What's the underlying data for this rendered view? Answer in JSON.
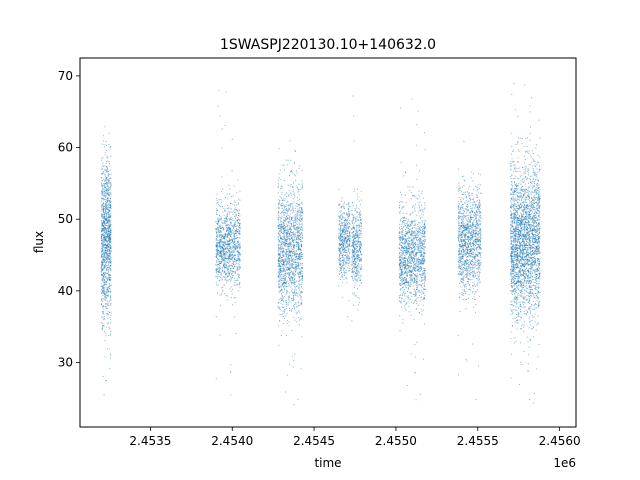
{
  "chart_data": {
    "type": "scatter",
    "title": "1SWASPJ220130.10+140632.0",
    "xlabel": "time",
    "ylabel": "flux",
    "x_offset_label": "1e6",
    "xlim": [
      2453070,
      2456100
    ],
    "ylim": [
      21,
      72.5
    ],
    "grid": false,
    "legend": "none",
    "marker_color": "#1f77b4",
    "x_ticks": [
      2453500,
      2454000,
      2454500,
      2455000,
      2455500,
      2456000
    ],
    "x_tick_labels": [
      "2.4535",
      "2.4540",
      "2.4545",
      "2.4550",
      "2.4555",
      "2.4560"
    ],
    "y_ticks": [
      30,
      40,
      50,
      60,
      70
    ],
    "y_tick_labels": [
      "30",
      "40",
      "50",
      "60",
      "70"
    ],
    "clusters": [
      {
        "x_start": 2453200,
        "x_end": 2453260,
        "y_center": 47,
        "y_low": 36,
        "y_high": 59,
        "y_min": 25.5,
        "y_max": 67,
        "count": 1200
      },
      {
        "x_start": 2453900,
        "x_end": 2454050,
        "y_center": 46,
        "y_low": 40,
        "y_high": 52,
        "y_min": 23.5,
        "y_max": 69,
        "count": 1100
      },
      {
        "x_start": 2454280,
        "x_end": 2454430,
        "y_center": 46,
        "y_low": 38,
        "y_high": 56,
        "y_min": 23,
        "y_max": 62,
        "count": 1500
      },
      {
        "x_start": 2454650,
        "x_end": 2454720,
        "y_center": 47,
        "y_low": 42,
        "y_high": 52,
        "y_min": 36,
        "y_max": 58,
        "count": 500
      },
      {
        "x_start": 2454730,
        "x_end": 2454790,
        "y_center": 46,
        "y_low": 40,
        "y_high": 52,
        "y_min": 32.5,
        "y_max": 68,
        "count": 450
      },
      {
        "x_start": 2455020,
        "x_end": 2455180,
        "y_center": 45,
        "y_low": 38,
        "y_high": 52,
        "y_min": 23.5,
        "y_max": 68,
        "count": 1300
      },
      {
        "x_start": 2455380,
        "x_end": 2455520,
        "y_center": 47,
        "y_low": 40,
        "y_high": 54,
        "y_min": 24,
        "y_max": 70,
        "count": 1200
      },
      {
        "x_start": 2455700,
        "x_end": 2455880,
        "y_center": 47,
        "y_low": 37,
        "y_high": 58,
        "y_min": 23.5,
        "y_max": 70,
        "count": 2600
      }
    ]
  }
}
